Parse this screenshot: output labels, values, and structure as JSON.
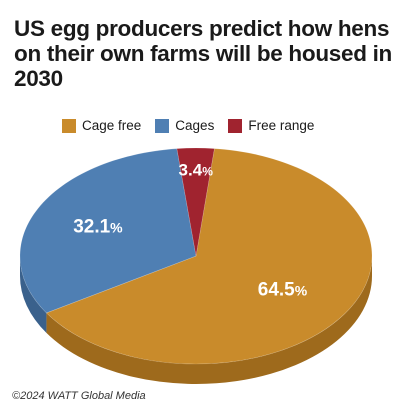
{
  "title": "US egg producers predict how hens on their own farms will be housed in 2030",
  "footer": "©2024 WATT Global Media",
  "chart_data": {
    "type": "pie",
    "categories": [
      "Cage free",
      "Cages",
      "Free range"
    ],
    "values": [
      64.5,
      32.1,
      3.4
    ],
    "value_labels": [
      {
        "number": "64.5",
        "unit": "%"
      },
      {
        "number": "32.1",
        "unit": "%"
      },
      {
        "number": "3.4",
        "unit": "%"
      }
    ],
    "colors": [
      "#C98B2B",
      "#4F7FB3",
      "#A0232F"
    ],
    "side_colors": [
      "#9E6A1C",
      "#3A618C",
      "#7A1A24"
    ],
    "label_colors": [
      "#ffffff",
      "#ffffff",
      "#ffffff"
    ],
    "legend_position": "top",
    "style": "3d"
  }
}
